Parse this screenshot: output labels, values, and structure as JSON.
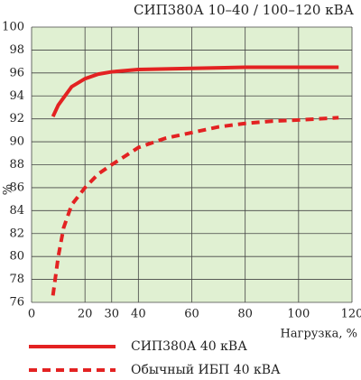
{
  "chart_data": {
    "type": "line",
    "title": "СИП380А 10–40 / 100–120 кВА",
    "x_label": "Нагрузка, %",
    "y_label": "%",
    "xlim": [
      0,
      120
    ],
    "xticks": [
      0,
      20,
      30,
      40,
      60,
      80,
      100,
      120
    ],
    "ylim": [
      76,
      100
    ],
    "yticks": [
      76,
      78,
      80,
      82,
      84,
      86,
      88,
      90,
      92,
      94,
      96,
      98,
      100
    ],
    "grid": true,
    "series": [
      {
        "name": "СИП380А 40 кВА",
        "color": "#e32222",
        "dash": false,
        "x": [
          8,
          10,
          15,
          20,
          25,
          30,
          40,
          60,
          80,
          100,
          115
        ],
        "values": [
          92.2,
          93.2,
          94.8,
          95.5,
          95.9,
          96.1,
          96.3,
          96.4,
          96.5,
          96.5,
          96.5
        ]
      },
      {
        "name": "Обычный ИБП 40 кВА",
        "color": "#e32222",
        "dash": true,
        "x": [
          8,
          10,
          12,
          15,
          20,
          25,
          30,
          40,
          50,
          60,
          70,
          80,
          90,
          100,
          115
        ],
        "values": [
          76.6,
          80,
          82.5,
          84.5,
          86,
          87.2,
          88,
          89.5,
          90.3,
          90.8,
          91.3,
          91.6,
          91.8,
          91.9,
          92.1
        ]
      }
    ]
  }
}
